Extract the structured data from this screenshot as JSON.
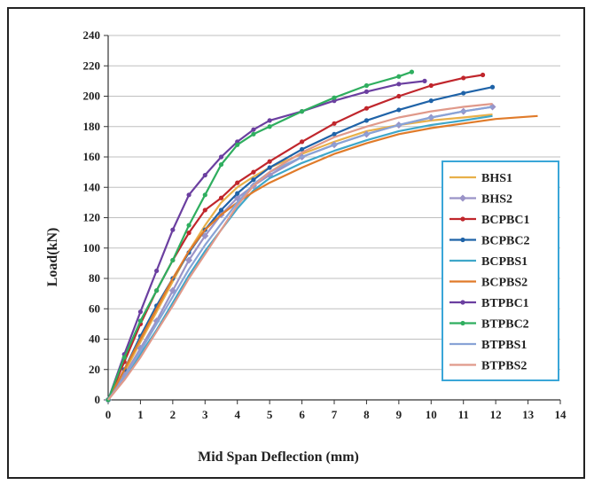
{
  "chart_data": {
    "type": "line",
    "title": "",
    "xlabel": "Mid Span Deflection (mm)",
    "ylabel": "Load(kN)",
    "xlim": [
      0,
      14
    ],
    "ylim": [
      0,
      240
    ],
    "xticks": [
      0,
      1,
      2,
      3,
      4,
      5,
      6,
      7,
      8,
      9,
      10,
      11,
      12,
      13,
      14
    ],
    "yticks": [
      0,
      20,
      40,
      60,
      80,
      100,
      120,
      140,
      160,
      180,
      200,
      220,
      240
    ],
    "grid": "horizontal",
    "legend_position": "right",
    "series": [
      {
        "name": "BHS1",
        "color": "#e8b04a",
        "marker": "none",
        "x": [
          0,
          0.5,
          1,
          1.5,
          2,
          2.5,
          3,
          3.5,
          4,
          4.5,
          5,
          6,
          7,
          8,
          9,
          10,
          11,
          11.9
        ],
        "y": [
          0,
          18,
          38,
          58,
          78,
          98,
          115,
          130,
          140,
          147,
          153,
          162,
          170,
          177,
          181,
          184,
          186,
          188
        ]
      },
      {
        "name": "BHS2",
        "color": "#9a93c7",
        "marker": "diamond",
        "x": [
          0,
          0.5,
          1,
          1.5,
          2,
          2.5,
          3,
          3.5,
          4,
          4.5,
          5,
          6,
          7,
          8,
          9,
          10,
          11,
          11.9
        ],
        "y": [
          0,
          16,
          34,
          52,
          72,
          92,
          108,
          122,
          133,
          141,
          148,
          160,
          168,
          175,
          181,
          186,
          190,
          193
        ]
      },
      {
        "name": "BCPBC1",
        "color": "#c0262c",
        "marker": "circle",
        "x": [
          0,
          0.5,
          1,
          1.5,
          2,
          2.5,
          3,
          3.5,
          4,
          4.5,
          5,
          6,
          7,
          8,
          9,
          10,
          11,
          11.6
        ],
        "y": [
          0,
          25,
          50,
          72,
          92,
          110,
          125,
          133,
          143,
          150,
          157,
          170,
          182,
          192,
          200,
          207,
          212,
          214
        ]
      },
      {
        "name": "BCPBC2",
        "color": "#1f63a8",
        "marker": "circle",
        "x": [
          0,
          0.5,
          1,
          1.5,
          2,
          2.5,
          3,
          3.5,
          4,
          4.5,
          5,
          6,
          7,
          8,
          9,
          10,
          11,
          11.9
        ],
        "y": [
          0,
          20,
          42,
          62,
          80,
          97,
          112,
          125,
          136,
          145,
          153,
          165,
          175,
          184,
          191,
          197,
          202,
          206
        ]
      },
      {
        "name": "BCPBS1",
        "color": "#3fa7c9",
        "marker": "none",
        "x": [
          0,
          0.5,
          1,
          1.5,
          2,
          2.5,
          3,
          3.5,
          4,
          4.5,
          5,
          6,
          7,
          8,
          9,
          10,
          11,
          11.9
        ],
        "y": [
          0,
          14,
          30,
          46,
          64,
          82,
          98,
          112,
          126,
          138,
          146,
          156,
          164,
          171,
          177,
          181,
          184,
          187
        ]
      },
      {
        "name": "BCPBS2",
        "color": "#e07b2a",
        "marker": "none",
        "x": [
          0,
          0.5,
          1,
          1.5,
          2,
          2.5,
          3,
          3.5,
          4,
          4.5,
          5,
          6,
          7,
          8,
          9,
          10,
          11,
          12,
          13.3
        ],
        "y": [
          0,
          20,
          40,
          60,
          80,
          98,
          112,
          122,
          130,
          137,
          143,
          153,
          162,
          169,
          175,
          179,
          182,
          185,
          187
        ]
      },
      {
        "name": "BTPBC1",
        "color": "#6b3fa0",
        "marker": "circle",
        "x": [
          0,
          0.5,
          1,
          1.5,
          2,
          2.5,
          3,
          3.5,
          4,
          4.5,
          5,
          6,
          7,
          8,
          9,
          9.8
        ],
        "y": [
          0,
          30,
          58,
          85,
          112,
          135,
          148,
          160,
          170,
          178,
          184,
          190,
          197,
          203,
          208,
          210
        ]
      },
      {
        "name": "BTPBC2",
        "color": "#2fae5f",
        "marker": "circle",
        "x": [
          0,
          0.5,
          1,
          1.5,
          2,
          2.5,
          3,
          3.5,
          4,
          4.5,
          5,
          6,
          7,
          8,
          9,
          9.4
        ],
        "y": [
          0,
          28,
          52,
          72,
          92,
          115,
          135,
          155,
          168,
          175,
          180,
          190,
          199,
          207,
          213,
          216
        ]
      },
      {
        "name": "BTPBS1",
        "color": "#89a3d6",
        "marker": "none",
        "x": [
          0,
          0.5,
          1,
          1.5,
          2,
          2.5,
          3,
          3.5,
          4,
          4.5,
          5,
          6,
          7,
          8,
          9,
          10,
          11,
          11.9
        ],
        "y": [
          0,
          15,
          32,
          50,
          68,
          86,
          102,
          116,
          130,
          142,
          150,
          160,
          168,
          175,
          181,
          186,
          190,
          193
        ]
      },
      {
        "name": "BTPBS2",
        "color": "#e0998a",
        "marker": "none",
        "x": [
          0,
          0.5,
          1,
          1.5,
          2,
          2.5,
          3,
          3.5,
          4,
          4.5,
          5,
          6,
          7,
          8,
          9,
          10,
          11,
          11.9
        ],
        "y": [
          0,
          13,
          28,
          45,
          62,
          80,
          96,
          112,
          128,
          141,
          150,
          163,
          173,
          180,
          186,
          190,
          193,
          195
        ]
      }
    ]
  }
}
